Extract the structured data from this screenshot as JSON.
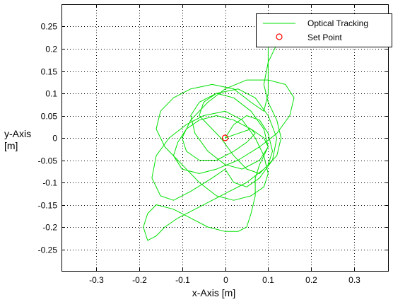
{
  "chart_data": {
    "type": "scatter",
    "xlabel": "x-Axis [m]",
    "ylabel_line1": "y-Axis",
    "ylabel_line2": "[m]",
    "xlim": [
      -0.38,
      0.38
    ],
    "ylim": [
      -0.3,
      0.3
    ],
    "x_ticks": [
      -0.3,
      -0.2,
      -0.1,
      0,
      0.1,
      0.2,
      0.3
    ],
    "x_tick_labels": [
      "-0.3",
      "-0.2",
      "-0.1",
      "0",
      "0.1",
      "0.2",
      "0.3"
    ],
    "y_ticks": [
      0.25,
      0.2,
      0.15,
      0.1,
      0.05,
      0,
      -0.05,
      -0.1,
      -0.15,
      -0.2,
      -0.25
    ],
    "y_tick_labels": [
      "0.25",
      "0.2",
      "0.15",
      "0.1",
      "0.05",
      "0",
      "-0.05",
      "-0.1",
      "-0.15",
      "-0.2",
      "-0.25"
    ],
    "grid": true,
    "legend_position": "top-right",
    "series": [
      {
        "name": "Optical Tracking",
        "style": "line",
        "color": "#00e000",
        "x": [
          0.0,
          0.02,
          0.05,
          0.08,
          0.1,
          0.11,
          0.1,
          0.08,
          0.05,
          0.02,
          -0.01,
          -0.04,
          -0.06,
          -0.05,
          -0.02,
          0.02,
          0.06,
          0.09,
          0.1,
          0.08,
          0.04,
          0.0,
          -0.04,
          -0.07,
          -0.08,
          -0.06,
          -0.02,
          0.03,
          0.07,
          0.1,
          0.12,
          0.11,
          0.08,
          0.05,
          0.02,
          0.0,
          -0.03,
          -0.08,
          -0.12,
          -0.15,
          -0.17,
          -0.16,
          -0.13,
          -0.09,
          -0.05,
          0.0,
          0.04,
          0.07,
          0.09,
          0.1,
          0.09,
          0.06,
          0.02,
          -0.02,
          -0.06,
          -0.1,
          -0.14,
          -0.16,
          -0.15,
          -0.12,
          -0.08,
          -0.03,
          0.02,
          0.06,
          0.09,
          0.1,
          0.1,
          0.1,
          0.1,
          0.11,
          0.12,
          0.1,
          0.09,
          0.1,
          0.12,
          0.13,
          0.12,
          0.09,
          0.05,
          0.01,
          -0.03,
          -0.07,
          -0.11,
          -0.14,
          -0.16,
          -0.18,
          -0.19,
          -0.18,
          -0.16,
          -0.12,
          -0.08,
          -0.04,
          0.0,
          0.03,
          0.05,
          0.06,
          0.07,
          0.07,
          0.08,
          0.09,
          0.1,
          0.09,
          0.06,
          0.02,
          -0.02,
          -0.06,
          -0.09,
          -0.11,
          -0.12,
          -0.1,
          -0.06,
          -0.02,
          0.03,
          0.08,
          0.12,
          0.15,
          0.16,
          0.14,
          0.1,
          0.05,
          0.0,
          -0.04,
          -0.08,
          -0.1,
          -0.09,
          -0.06,
          -0.02,
          0.02,
          0.05,
          0.07,
          0.06,
          0.03,
          0.0
        ],
        "y": [
          0.0,
          0.03,
          0.05,
          0.04,
          0.01,
          -0.03,
          -0.06,
          -0.08,
          -0.07,
          -0.04,
          0.0,
          0.03,
          0.05,
          0.08,
          0.1,
          0.09,
          0.06,
          0.02,
          -0.02,
          -0.05,
          -0.07,
          -0.06,
          -0.03,
          0.01,
          0.05,
          0.08,
          0.1,
          0.11,
          0.09,
          0.05,
          0.0,
          -0.05,
          -0.09,
          -0.11,
          -0.1,
          -0.07,
          -0.09,
          -0.12,
          -0.14,
          -0.13,
          -0.09,
          -0.04,
          0.0,
          0.03,
          0.05,
          0.06,
          0.04,
          0.0,
          -0.04,
          -0.08,
          -0.11,
          -0.13,
          -0.14,
          -0.13,
          -0.1,
          -0.06,
          -0.02,
          0.02,
          0.06,
          0.09,
          0.11,
          0.12,
          0.11,
          0.08,
          0.06,
          0.1,
          0.14,
          0.18,
          0.21,
          0.24,
          0.21,
          0.17,
          0.12,
          0.08,
          0.04,
          0.0,
          -0.04,
          -0.07,
          -0.1,
          -0.12,
          -0.14,
          -0.16,
          -0.18,
          -0.2,
          -0.22,
          -0.23,
          -0.2,
          -0.17,
          -0.15,
          -0.16,
          -0.18,
          -0.2,
          -0.21,
          -0.21,
          -0.2,
          -0.17,
          -0.13,
          -0.09,
          -0.06,
          -0.04,
          -0.02,
          0.0,
          0.02,
          0.04,
          0.05,
          0.04,
          0.02,
          -0.01,
          -0.04,
          -0.07,
          -0.08,
          -0.07,
          -0.05,
          -0.02,
          0.01,
          0.05,
          0.09,
          0.12,
          0.13,
          0.13,
          0.11,
          0.08,
          0.04,
          0.0,
          -0.03,
          -0.05,
          -0.05,
          -0.03,
          -0.01,
          0.01,
          0.02,
          0.01,
          0.0
        ]
      },
      {
        "name": "Set Point",
        "style": "marker",
        "marker": "circle",
        "color": "#ff0000",
        "x": [
          0
        ],
        "y": [
          0
        ]
      }
    ]
  }
}
